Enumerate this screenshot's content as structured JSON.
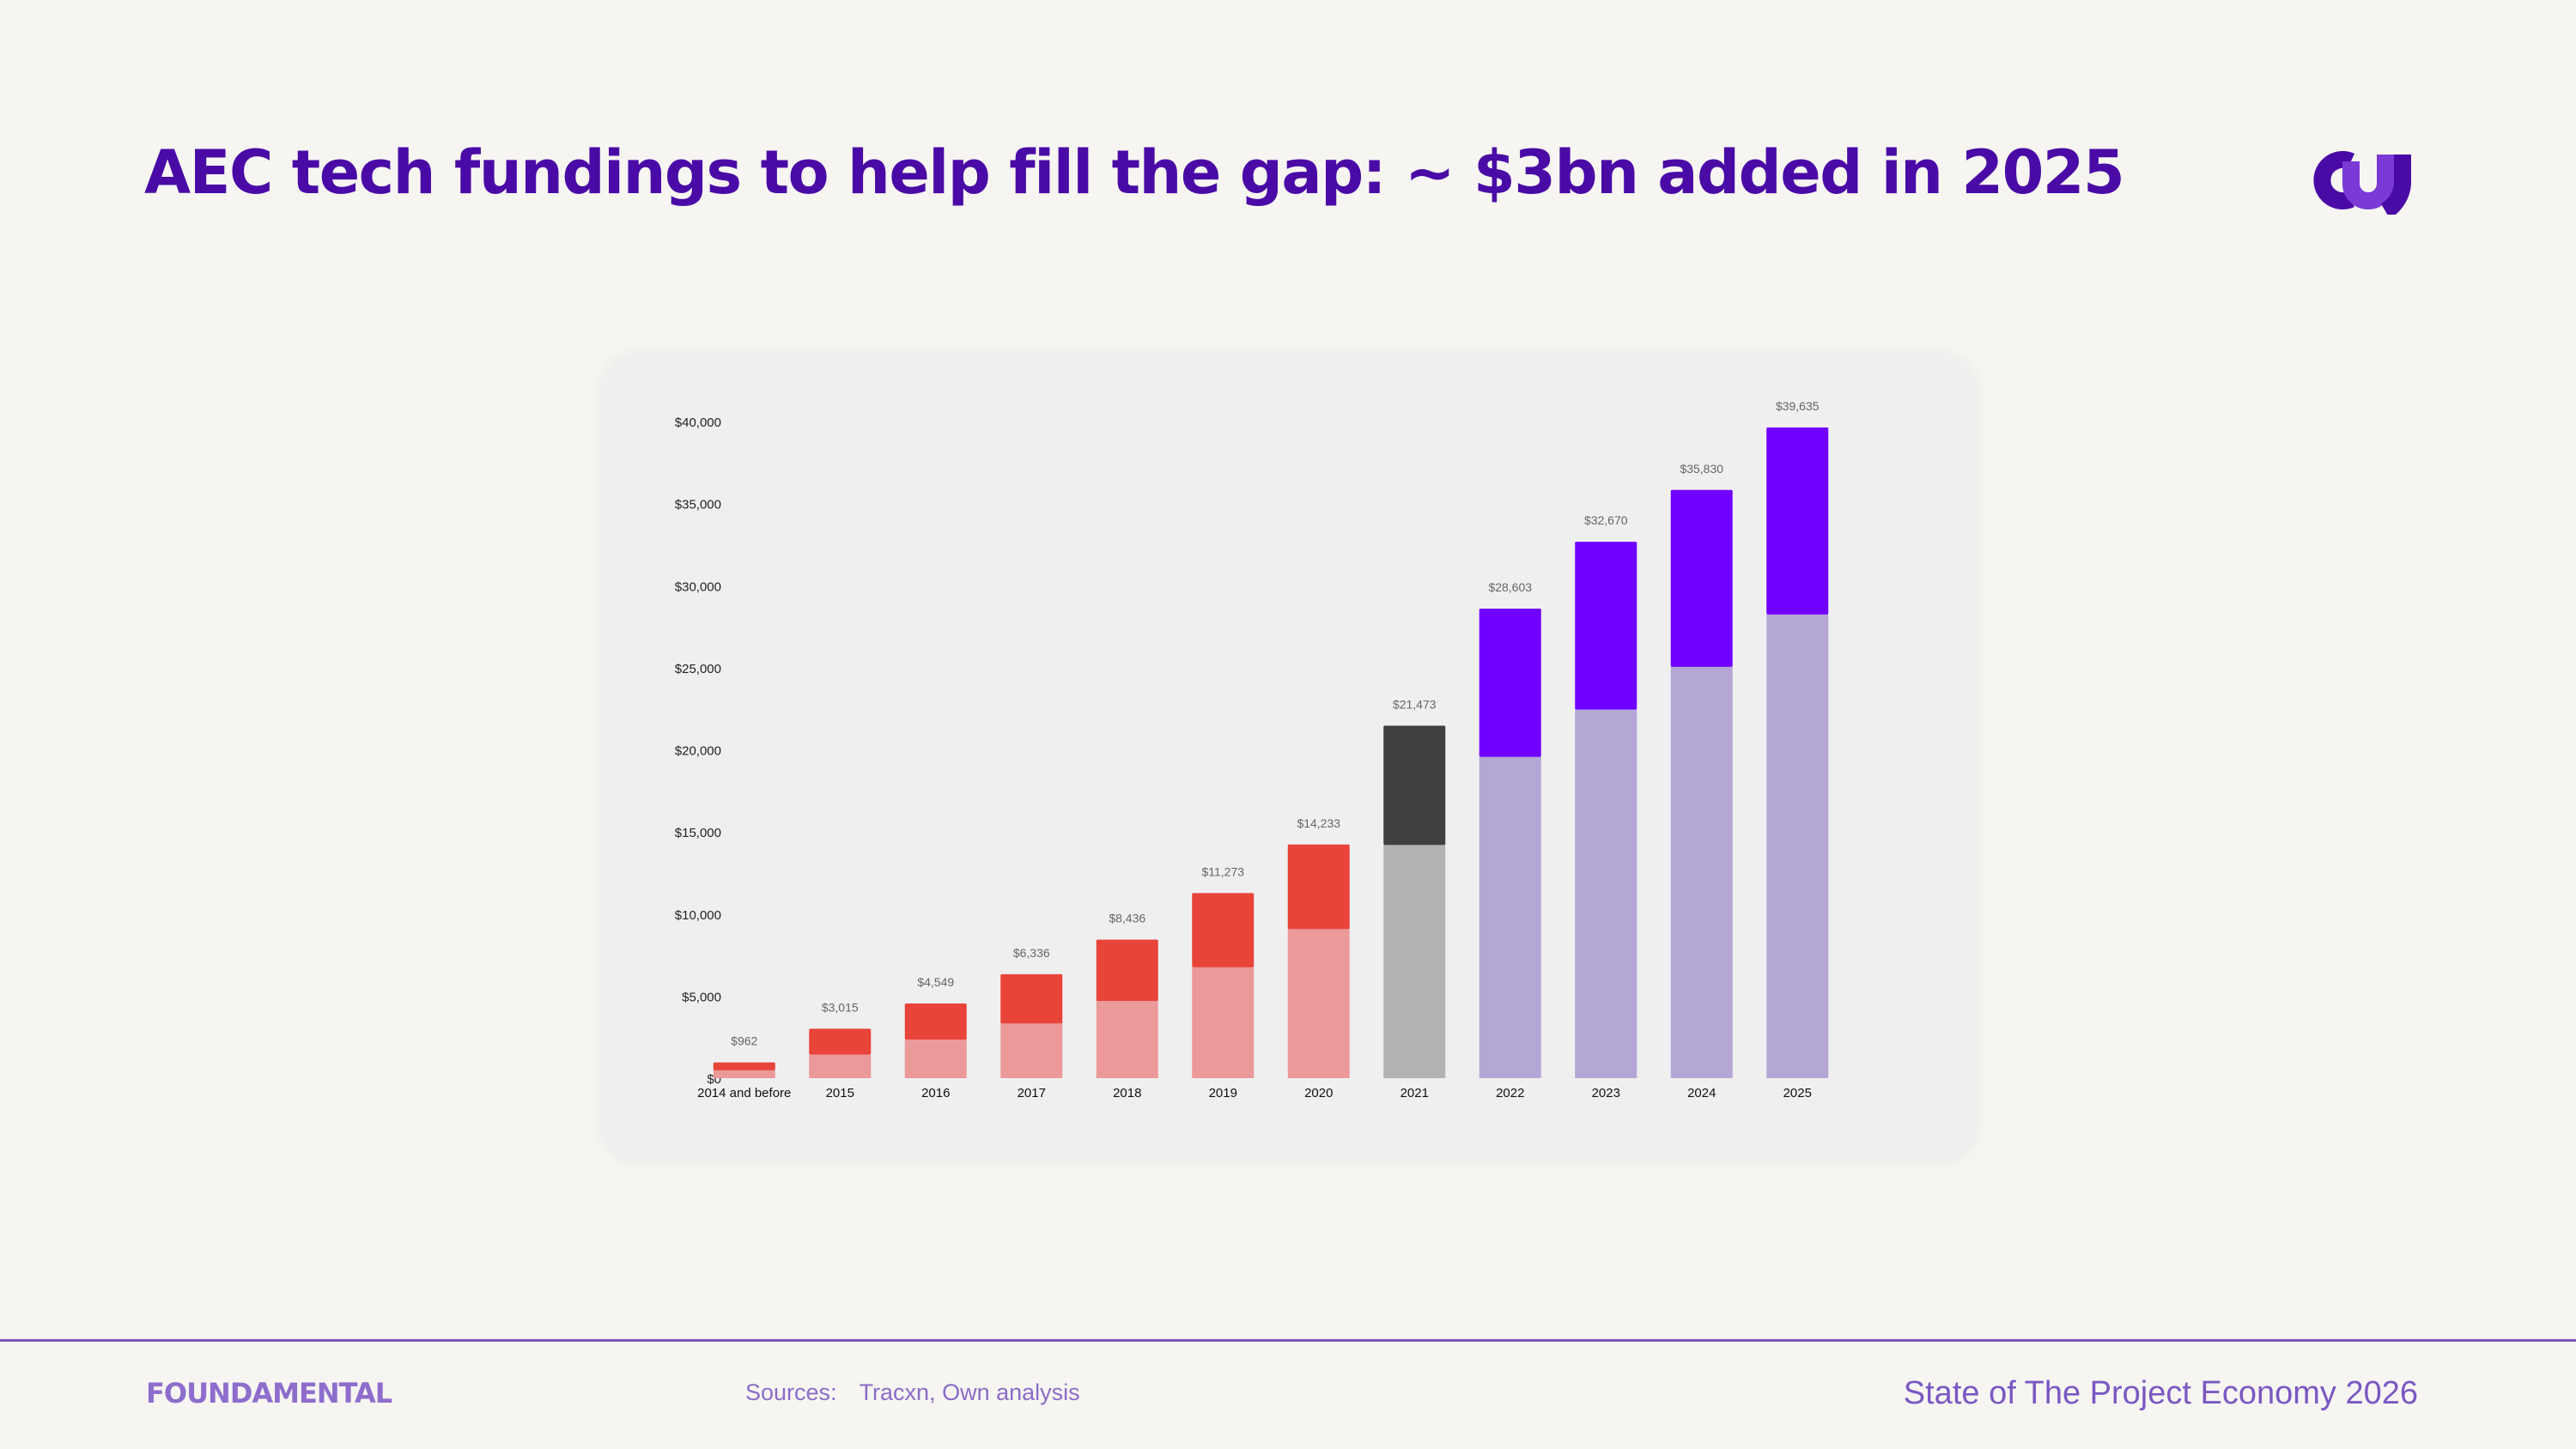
{
  "slide": {
    "title": "AEC tech fundings to help fill the gap: ~ $3bn added in 2025",
    "brand": "FOUNDAMENTAL",
    "sources_label": "Sources:",
    "sources_text": "Tracxn, Own analysis",
    "report_title": "State of The Project Economy 2026"
  },
  "colors": {
    "title": "#4a0aa6",
    "accent_purple": "#7000ff",
    "light_purple": "#b4a6d5",
    "red": "#e8443a",
    "light_red": "#eb9999",
    "dark_gray": "#404040",
    "light_gray": "#b3b3b3"
  },
  "chart_data": {
    "type": "bar",
    "stacked": true,
    "categories": [
      "2014 and before",
      "2015",
      "2016",
      "2017",
      "2018",
      "2019",
      "2020",
      "2021",
      "2022",
      "2023",
      "2024",
      "2025"
    ],
    "totals": [
      962,
      3015,
      4549,
      6336,
      8436,
      11273,
      14233,
      21473,
      28603,
      32670,
      35830,
      39635
    ],
    "total_labels": [
      "$962",
      "$3,015",
      "$4,549",
      "$6,336",
      "$8,436",
      "$11,273",
      "$14,233",
      "$21,473",
      "$28,603",
      "$32,670",
      "$35,830",
      "$39,635"
    ],
    "bottom_segment": [
      480,
      1430,
      2350,
      3330,
      4700,
      6750,
      9080,
      14200,
      19570,
      22450,
      25050,
      28240
    ],
    "top_segment": [
      482,
      1585,
      2199,
      3006,
      3736,
      4523,
      5153,
      7273,
      9033,
      10220,
      10780,
      11395
    ],
    "bottom_colors": [
      "#eb9999",
      "#eb9999",
      "#eb9999",
      "#eb9999",
      "#eb9999",
      "#eb9999",
      "#eb9999",
      "#b3b3b3",
      "#b4a6d5",
      "#b4a6d5",
      "#b4a6d5",
      "#b4a6d5"
    ],
    "top_colors": [
      "#e8443a",
      "#e8443a",
      "#e8443a",
      "#e8443a",
      "#e8443a",
      "#e8443a",
      "#e8443a",
      "#404040",
      "#7000ff",
      "#7000ff",
      "#7000ff",
      "#7000ff"
    ],
    "y_ticks": [
      0,
      5000,
      10000,
      15000,
      20000,
      25000,
      30000,
      35000,
      40000
    ],
    "y_tick_labels": [
      "$0",
      "$5,000",
      "$10,000",
      "$15,000",
      "$20,000",
      "$25,000",
      "$30,000",
      "$35,000",
      "$40,000"
    ],
    "ylim": [
      0,
      40000
    ],
    "grid": false,
    "legend": false
  }
}
